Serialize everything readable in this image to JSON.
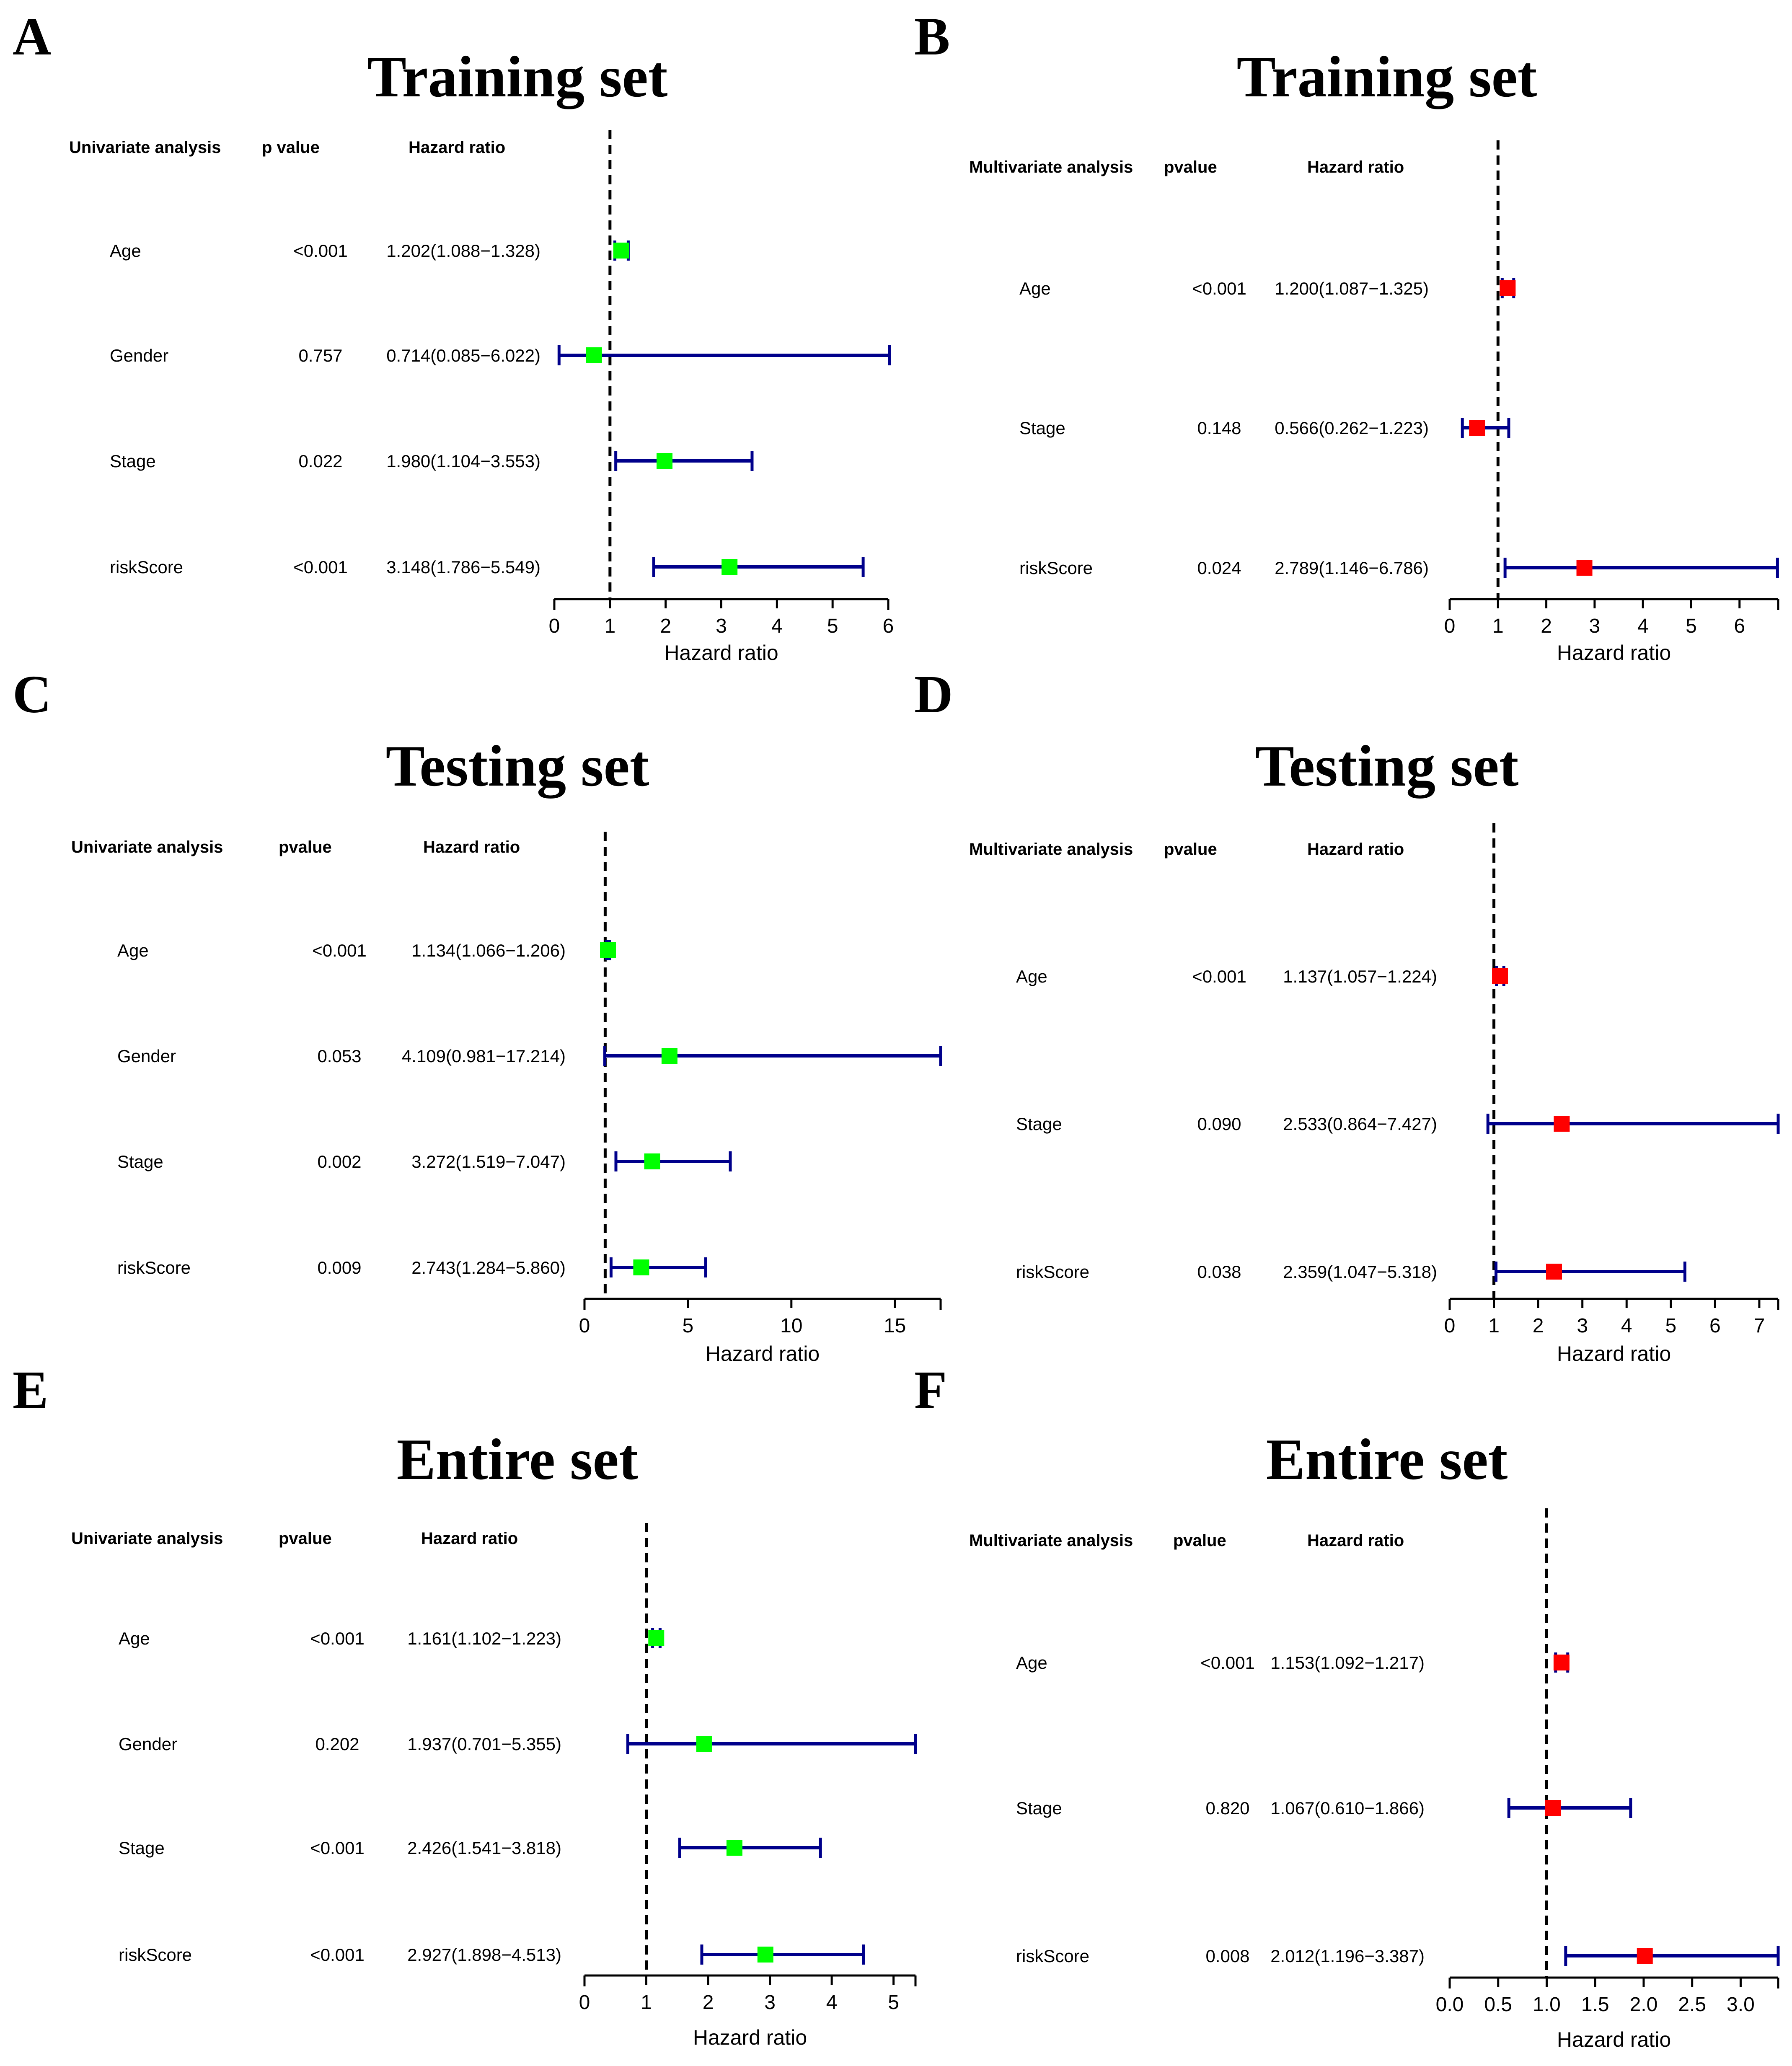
{
  "chart_data": [
    {
      "type": "forest",
      "panel": "A",
      "title": "Training set",
      "headers": {
        "analysis": "Univariate analysis",
        "pvalue": "p value",
        "hr": "Hazard ratio"
      },
      "xlabel": "Hazard ratio",
      "xlim": [
        0,
        6
      ],
      "ticks": [
        0,
        1,
        2,
        3,
        4,
        5,
        6
      ],
      "tick_labels": [
        "0",
        "1",
        "2",
        "3",
        "4",
        "5",
        "6"
      ],
      "reference": 1,
      "marker_color": "#00ff00",
      "rows": [
        {
          "variable": "Age",
          "pvalue": "<0.001",
          "hr_text": "1.202(1.088−1.328)",
          "hr": 1.202,
          "low": 1.088,
          "high": 1.328
        },
        {
          "variable": "Gender",
          "pvalue": "0.757",
          "hr_text": "0.714(0.085−6.022)",
          "hr": 0.714,
          "low": 0.085,
          "high": 6.022
        },
        {
          "variable": "Stage",
          "pvalue": "0.022",
          "hr_text": "1.980(1.104−3.553)",
          "hr": 1.98,
          "low": 1.104,
          "high": 3.553
        },
        {
          "variable": "riskScore",
          "pvalue": "<0.001",
          "hr_text": "3.148(1.786−5.549)",
          "hr": 3.148,
          "low": 1.786,
          "high": 5.549
        }
      ]
    },
    {
      "type": "forest",
      "panel": "B",
      "title": "Training set",
      "headers": {
        "analysis": "Multivariate analysis",
        "pvalue": "pvalue",
        "hr": "Hazard ratio"
      },
      "xlabel": "Hazard ratio",
      "xlim": [
        0,
        6.8
      ],
      "ticks": [
        0,
        1,
        2,
        3,
        4,
        5,
        6
      ],
      "tick_labels": [
        "0",
        "1",
        "2",
        "3",
        "4",
        "5",
        "6"
      ],
      "reference": 1,
      "marker_color": "#ff0000",
      "rows": [
        {
          "variable": "Age",
          "pvalue": "<0.001",
          "hr_text": "1.200(1.087−1.325)",
          "hr": 1.2,
          "low": 1.087,
          "high": 1.325
        },
        {
          "variable": "Stage",
          "pvalue": "0.148",
          "hr_text": "0.566(0.262−1.223)",
          "hr": 0.566,
          "low": 0.262,
          "high": 1.223
        },
        {
          "variable": "riskScore",
          "pvalue": "0.024",
          "hr_text": "2.789(1.146−6.786)",
          "hr": 2.789,
          "low": 1.146,
          "high": 6.786
        }
      ]
    },
    {
      "type": "forest",
      "panel": "C",
      "title": "Testing set",
      "headers": {
        "analysis": "Univariate analysis",
        "pvalue": "pvalue",
        "hr": "Hazard ratio"
      },
      "xlabel": "Hazard ratio",
      "xlim": [
        0,
        17.214
      ],
      "ticks": [
        0,
        5,
        10,
        15
      ],
      "tick_labels": [
        "0",
        "5",
        "10",
        "15"
      ],
      "reference": 1,
      "marker_color": "#00ff00",
      "rows": [
        {
          "variable": "Age",
          "pvalue": "<0.001",
          "hr_text": "1.134(1.066−1.206)",
          "hr": 1.134,
          "low": 1.066,
          "high": 1.206
        },
        {
          "variable": "Gender",
          "pvalue": "0.053",
          "hr_text": "4.109(0.981−17.214)",
          "hr": 4.109,
          "low": 0.981,
          "high": 17.214
        },
        {
          "variable": "Stage",
          "pvalue": "0.002",
          "hr_text": "3.272(1.519−7.047)",
          "hr": 3.272,
          "low": 1.519,
          "high": 7.047
        },
        {
          "variable": "riskScore",
          "pvalue": "0.009",
          "hr_text": "2.743(1.284−5.860)",
          "hr": 2.743,
          "low": 1.284,
          "high": 5.86
        }
      ]
    },
    {
      "type": "forest",
      "panel": "D",
      "title": "Testing set",
      "headers": {
        "analysis": "Multivariate analysis",
        "pvalue": "pvalue",
        "hr": "Hazard ratio"
      },
      "xlabel": "Hazard ratio",
      "xlim": [
        0,
        7.427
      ],
      "ticks": [
        0,
        1,
        2,
        3,
        4,
        5,
        6,
        7
      ],
      "tick_labels": [
        "0",
        "1",
        "2",
        "3",
        "4",
        "5",
        "6",
        "7"
      ],
      "reference": 1,
      "marker_color": "#ff0000",
      "rows": [
        {
          "variable": "Age",
          "pvalue": "<0.001",
          "hr_text": "1.137(1.057−1.224)",
          "hr": 1.137,
          "low": 1.057,
          "high": 1.224
        },
        {
          "variable": "Stage",
          "pvalue": "0.090",
          "hr_text": "2.533(0.864−7.427)",
          "hr": 2.533,
          "low": 0.864,
          "high": 7.427
        },
        {
          "variable": "riskScore",
          "pvalue": "0.038",
          "hr_text": "2.359(1.047−5.318)",
          "hr": 2.359,
          "low": 1.047,
          "high": 5.318
        }
      ]
    },
    {
      "type": "forest",
      "panel": "E",
      "title": "Entire set",
      "headers": {
        "analysis": "Univariate analysis",
        "pvalue": "pvalue",
        "hr": "Hazard ratio"
      },
      "xlabel": "Hazard ratio",
      "xlim": [
        0,
        5.355
      ],
      "ticks": [
        0,
        1,
        2,
        3,
        4,
        5
      ],
      "tick_labels": [
        "0",
        "1",
        "2",
        "3",
        "4",
        "5"
      ],
      "reference": 1,
      "marker_color": "#00ff00",
      "rows": [
        {
          "variable": "Age",
          "pvalue": "<0.001",
          "hr_text": "1.161(1.102−1.223)",
          "hr": 1.161,
          "low": 1.102,
          "high": 1.223
        },
        {
          "variable": "Gender",
          "pvalue": "0.202",
          "hr_text": "1.937(0.701−5.355)",
          "hr": 1.937,
          "low": 0.701,
          "high": 5.355
        },
        {
          "variable": "Stage",
          "pvalue": "<0.001",
          "hr_text": "2.426(1.541−3.818)",
          "hr": 2.426,
          "low": 1.541,
          "high": 3.818
        },
        {
          "variable": "riskScore",
          "pvalue": "<0.001",
          "hr_text": "2.927(1.898−4.513)",
          "hr": 2.927,
          "low": 1.898,
          "high": 4.513
        }
      ]
    },
    {
      "type": "forest",
      "panel": "F",
      "title": "Entire set",
      "headers": {
        "analysis": "Multivariate analysis",
        "pvalue": "pvalue",
        "hr": "Hazard ratio"
      },
      "xlabel": "Hazard ratio",
      "xlim": [
        0,
        3.387
      ],
      "ticks": [
        0,
        0.5,
        1,
        1.5,
        2,
        2.5,
        3
      ],
      "tick_labels": [
        "0.0",
        "0.5",
        "1.0",
        "1.5",
        "2.0",
        "2.5",
        "3.0"
      ],
      "reference": 1,
      "marker_color": "#ff0000",
      "rows": [
        {
          "variable": "Age",
          "pvalue": "<0.001",
          "hr_text": "1.153(1.092−1.217)",
          "hr": 1.153,
          "low": 1.092,
          "high": 1.217
        },
        {
          "variable": "Stage",
          "pvalue": "0.820",
          "hr_text": "1.067(0.610−1.866)",
          "hr": 1.067,
          "low": 0.61,
          "high": 1.866
        },
        {
          "variable": "riskScore",
          "pvalue": "0.008",
          "hr_text": "2.012(1.196−3.387)",
          "hr": 2.012,
          "low": 1.196,
          "high": 3.387
        }
      ]
    }
  ],
  "colors": {
    "ci_line": "#00008b",
    "reference_line": "#000000"
  }
}
